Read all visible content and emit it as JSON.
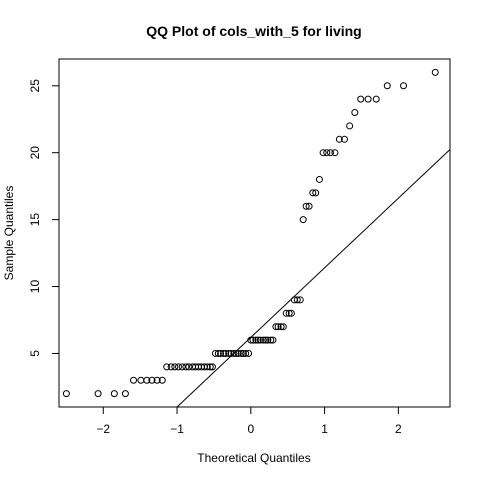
{
  "chart_data": {
    "type": "scatter",
    "title": "QQ Plot of cols_with_5 for living",
    "xlabel": "Theoretical Quantiles",
    "ylabel": "Sample Quantiles",
    "xlim": [
      -2.6,
      2.7
    ],
    "ylim": [
      1,
      27
    ],
    "xticks": [
      -2,
      -1,
      0,
      1,
      2
    ],
    "yticks": [
      5,
      10,
      15,
      20,
      25
    ],
    "grid": false,
    "series": [
      {
        "points": [
          [
            -2.5,
            2
          ],
          [
            -2.07,
            2
          ],
          [
            -1.85,
            2
          ],
          [
            -1.7,
            2
          ],
          [
            -1.59,
            3
          ],
          [
            -1.49,
            3
          ],
          [
            -1.41,
            3
          ],
          [
            -1.34,
            3
          ],
          [
            -1.27,
            3
          ],
          [
            -1.2,
            3
          ],
          [
            -1.14,
            4
          ],
          [
            -1.08,
            4
          ],
          [
            -1.03,
            4
          ],
          [
            -0.98,
            4
          ],
          [
            -0.93,
            4
          ],
          [
            -0.88,
            4
          ],
          [
            -0.84,
            4
          ],
          [
            -0.79,
            4
          ],
          [
            -0.75,
            4
          ],
          [
            -0.71,
            4
          ],
          [
            -0.67,
            4
          ],
          [
            -0.63,
            4
          ],
          [
            -0.59,
            4
          ],
          [
            -0.55,
            4
          ],
          [
            -0.52,
            4
          ],
          [
            -0.48,
            5
          ],
          [
            -0.44,
            5
          ],
          [
            -0.41,
            5
          ],
          [
            -0.37,
            5
          ],
          [
            -0.34,
            5
          ],
          [
            -0.3,
            5
          ],
          [
            -0.27,
            5
          ],
          [
            -0.23,
            5
          ],
          [
            -0.2,
            5
          ],
          [
            -0.17,
            5
          ],
          [
            -0.13,
            5
          ],
          [
            -0.1,
            5
          ],
          [
            -0.07,
            5
          ],
          [
            -0.03,
            5
          ],
          [
            0.0,
            6
          ],
          [
            0.03,
            6
          ],
          [
            0.07,
            6
          ],
          [
            0.1,
            6
          ],
          [
            0.13,
            6
          ],
          [
            0.17,
            6
          ],
          [
            0.2,
            6
          ],
          [
            0.23,
            6
          ],
          [
            0.27,
            6
          ],
          [
            0.3,
            6
          ],
          [
            0.34,
            7
          ],
          [
            0.37,
            7
          ],
          [
            0.41,
            7
          ],
          [
            0.44,
            7
          ],
          [
            0.48,
            8
          ],
          [
            0.52,
            8
          ],
          [
            0.55,
            8
          ],
          [
            0.59,
            9
          ],
          [
            0.63,
            9
          ],
          [
            0.67,
            9
          ],
          [
            0.71,
            15
          ],
          [
            0.75,
            16
          ],
          [
            0.79,
            16
          ],
          [
            0.84,
            17
          ],
          [
            0.88,
            17
          ],
          [
            0.93,
            18
          ],
          [
            0.98,
            20
          ],
          [
            1.03,
            20
          ],
          [
            1.08,
            20
          ],
          [
            1.14,
            20
          ],
          [
            1.2,
            21
          ],
          [
            1.27,
            21
          ],
          [
            1.34,
            22
          ],
          [
            1.41,
            23
          ],
          [
            1.49,
            24
          ],
          [
            1.59,
            24
          ],
          [
            1.7,
            24
          ],
          [
            1.85,
            25
          ],
          [
            2.07,
            25
          ],
          [
            2.5,
            26
          ]
        ]
      }
    ],
    "reference_line": {
      "intercept": 6.2,
      "slope": 5.2
    },
    "colors": {
      "points": "#000000",
      "line": "#000000",
      "axes": "#000000"
    }
  }
}
